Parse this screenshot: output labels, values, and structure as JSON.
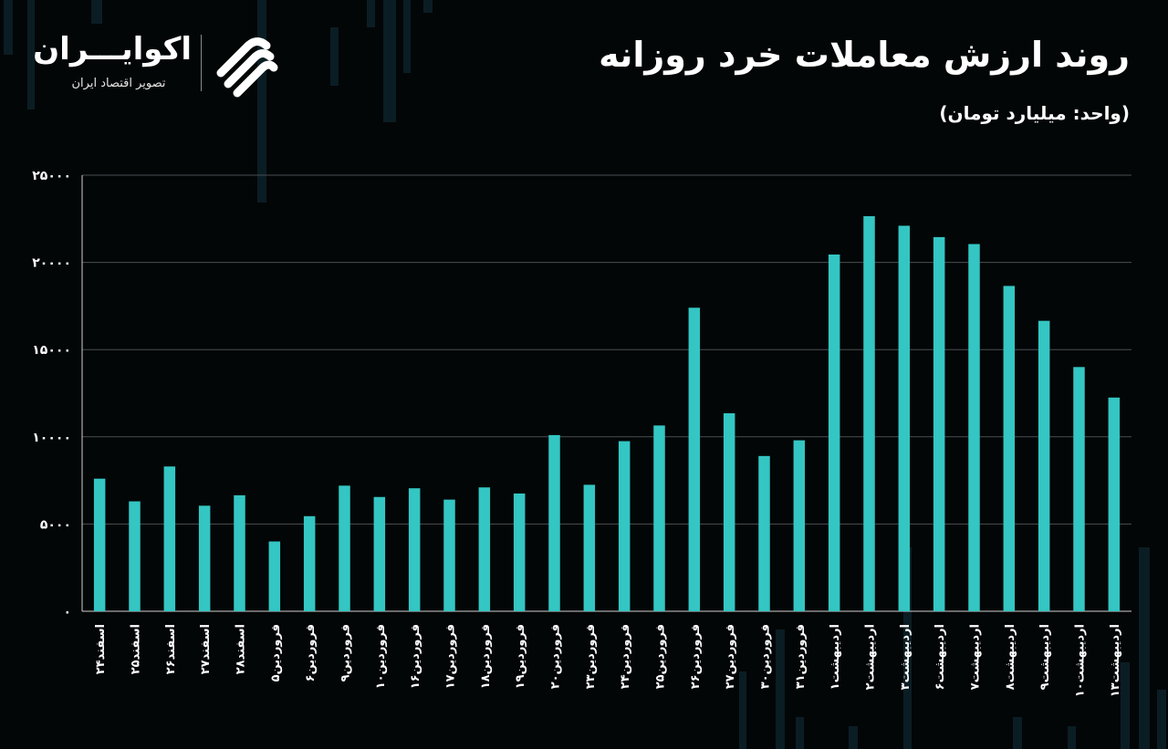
{
  "header": {
    "title": "روند ارزش معاملات خرد روزانه",
    "unit": "(واحد: میلیارد تومان)"
  },
  "brand": {
    "name": "اکوایـــران",
    "tagline": "تصویر اقتصاد ایران",
    "logo_icon": "ekoiran-logo-icon"
  },
  "colors": {
    "background": "#030607",
    "bar": "#34c6c3",
    "grid": "#4a4f52",
    "axis": "#d0d0d0"
  },
  "chart_data": {
    "type": "bar",
    "ylim": [
      0,
      25000
    ],
    "yticks": [
      0,
      5000,
      10000,
      15000,
      20000,
      25000
    ],
    "ytick_labels": [
      "۰",
      "۵۰۰۰",
      "۱۰۰۰۰",
      "۱۵۰۰۰",
      "۲۰۰۰۰",
      "۲۵۰۰۰"
    ],
    "grid": true,
    "categories": [
      "اسفند۲۴",
      "اسفند۲۵",
      "اسفند۲۶",
      "اسفند۲۷",
      "اسفند۲۸",
      "فروردین۵",
      "فروردین۶",
      "فروردین۹",
      "فروردین۱۰",
      "فروردین۱۶",
      "فروردین۱۷",
      "فروردین۱۸",
      "فروردین۱۹",
      "فروردین۲۰",
      "فروردین۲۳",
      "فروردین۲۴",
      "فروردین۲۵",
      "فروردین۲۶",
      "فروردین۲۷",
      "فروردین۳۰",
      "فروردین۳۱",
      "اردیبهشت۱",
      "اردیبهشت۲",
      "اردیبهشت۳",
      "اردیبهشت۶",
      "اردیبهشت۷",
      "اردیبهشت۸",
      "اردیبهشت۹",
      "اردیبهشت۱۰",
      "اردیبهشت۱۳"
    ],
    "values": [
      7600,
      6300,
      8300,
      6050,
      6650,
      4000,
      5450,
      7200,
      6550,
      7050,
      6400,
      7100,
      6750,
      10100,
      7250,
      9750,
      10650,
      17400,
      11350,
      8900,
      9800,
      20450,
      22650,
      22100,
      21450,
      21050,
      18650,
      16650,
      14000,
      12250
    ]
  }
}
